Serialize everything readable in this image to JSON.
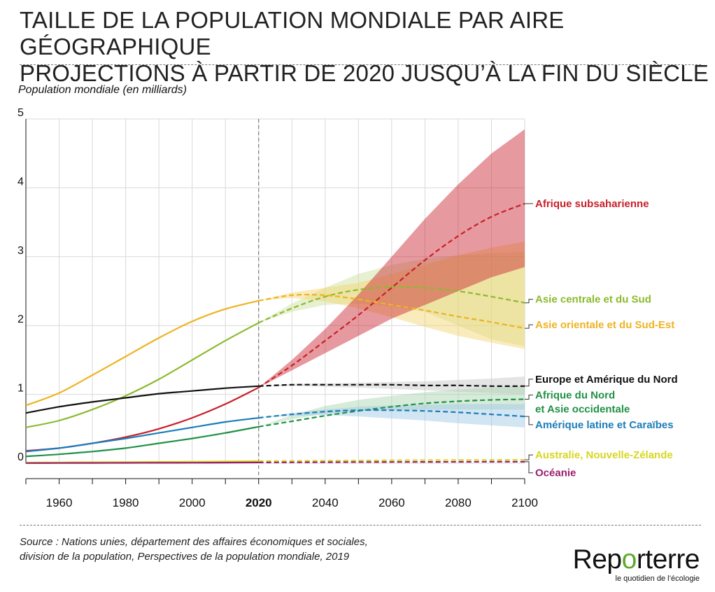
{
  "header": {
    "title_line1": "TAILLE DE LA POPULATION MONDIALE PAR AIRE GÉOGRAPHIQUE",
    "title_line2": "PROJECTIONS À PARTIR DE 2020 JUSQU’À LA FIN DU SIÈCLE"
  },
  "footer": {
    "source_line1": "Source : Nations unies, département des affaires économiques et sociales,",
    "source_line2": "division de la population, Perspectives de la population mondiale, 2019",
    "logo_prefix": "Rep",
    "logo_highlight": "o",
    "logo_suffix": "rterre",
    "logo_tagline": "le quotidien de l’écologie"
  },
  "chart_data": {
    "type": "line",
    "title": "",
    "ylabel": "Population mondiale (en milliards)",
    "xlabel": "",
    "xlim": [
      1950,
      2100
    ],
    "ylim": [
      0,
      5
    ],
    "x_ticks": [
      1960,
      1980,
      2000,
      2020,
      2040,
      2060,
      2080,
      2100
    ],
    "x_tick_emphasis": 2020,
    "y_ticks": [
      0,
      1,
      2,
      3,
      4,
      5
    ],
    "grid": true,
    "projection_start": 2020,
    "legend_placement": "right, inline labels",
    "series": [
      {
        "name": "Afrique subsaharienne",
        "color": "#c8202a",
        "x": [
          1950,
          1960,
          1970,
          1980,
          1990,
          2000,
          2010,
          2020,
          2030,
          2040,
          2050,
          2060,
          2070,
          2080,
          2090,
          2100
        ],
        "y": [
          0.18,
          0.22,
          0.29,
          0.38,
          0.5,
          0.66,
          0.86,
          1.1,
          1.42,
          1.78,
          2.15,
          2.55,
          2.95,
          3.3,
          3.58,
          3.77
        ],
        "band_low": [
          1.1,
          1.35,
          1.6,
          1.85,
          2.1,
          2.3,
          2.5,
          2.7,
          2.85
        ],
        "band_high": [
          1.1,
          1.5,
          1.95,
          2.45,
          3.0,
          3.55,
          4.05,
          4.5,
          4.85
        ]
      },
      {
        "name": "Asie centrale et du Sud",
        "color": "#8cba2e",
        "band_color": "#c9df9a",
        "x": [
          1950,
          1960,
          1970,
          1980,
          1990,
          2000,
          2010,
          2020,
          2030,
          2040,
          2050,
          2060,
          2070,
          2080,
          2090,
          2100
        ],
        "y": [
          0.52,
          0.62,
          0.78,
          0.98,
          1.22,
          1.5,
          1.78,
          2.04,
          2.25,
          2.42,
          2.52,
          2.56,
          2.55,
          2.5,
          2.42,
          2.33
        ],
        "band_low": [
          2.04,
          2.2,
          2.3,
          2.32,
          2.28,
          2.2,
          2.0,
          1.8,
          1.7
        ],
        "band_high": [
          2.04,
          2.32,
          2.55,
          2.75,
          2.88,
          2.97,
          3.02,
          3.05,
          3.07
        ]
      },
      {
        "name": "Asie orientale et du Sud-Est",
        "color": "#eeb322",
        "band_color": "#f3d26a",
        "x": [
          1950,
          1960,
          1970,
          1980,
          1990,
          2000,
          2010,
          2020,
          2030,
          2040,
          2050,
          2060,
          2070,
          2080,
          2090,
          2100
        ],
        "y": [
          0.84,
          1.02,
          1.28,
          1.55,
          1.82,
          2.06,
          2.24,
          2.36,
          2.44,
          2.44,
          2.38,
          2.3,
          2.22,
          2.13,
          2.05,
          1.96
        ],
        "band_low": [
          2.36,
          2.4,
          2.35,
          2.25,
          2.12,
          1.98,
          1.85,
          1.75,
          1.66
        ],
        "band_high": [
          2.36,
          2.48,
          2.55,
          2.62,
          2.75,
          2.88,
          3.02,
          3.13,
          3.22
        ]
      },
      {
        "name": "Europe et Amérique du Nord",
        "color": "#111111",
        "band_color": "#c4c4c4",
        "x": [
          1950,
          1960,
          1970,
          1980,
          1990,
          2000,
          2010,
          2020,
          2030,
          2040,
          2050,
          2060,
          2070,
          2080,
          2090,
          2100
        ],
        "y": [
          0.73,
          0.82,
          0.89,
          0.95,
          1.01,
          1.05,
          1.09,
          1.12,
          1.14,
          1.14,
          1.14,
          1.14,
          1.13,
          1.13,
          1.12,
          1.12
        ],
        "band_low": [
          1.12,
          1.12,
          1.11,
          1.1,
          1.08,
          1.06,
          1.04,
          1.02,
          1.0
        ],
        "band_high": [
          1.12,
          1.15,
          1.16,
          1.17,
          1.18,
          1.19,
          1.21,
          1.23,
          1.26
        ]
      },
      {
        "name": "Afrique du Nord et Asie occidentale",
        "label_lines": [
          "Afrique du Nord",
          "et Asie occidentale"
        ],
        "color": "#219147",
        "band_color": "#a6d3ac",
        "x": [
          1950,
          1960,
          1970,
          1980,
          1990,
          2000,
          2010,
          2020,
          2030,
          2040,
          2050,
          2060,
          2070,
          2080,
          2090,
          2100
        ],
        "y": [
          0.1,
          0.13,
          0.17,
          0.22,
          0.29,
          0.36,
          0.44,
          0.53,
          0.61,
          0.69,
          0.76,
          0.82,
          0.87,
          0.9,
          0.92,
          0.93
        ],
        "band_low": [
          0.53,
          0.64,
          0.72,
          0.76,
          0.77,
          0.78,
          0.78,
          0.78,
          0.78
        ],
        "band_high": [
          0.53,
          0.7,
          0.83,
          0.92,
          0.98,
          1.03,
          1.07,
          1.1,
          1.12
        ]
      },
      {
        "name": "Amérique latine et Caraïbes",
        "color": "#1b7dba",
        "band_color": "#9cc5e4",
        "x": [
          1950,
          1960,
          1970,
          1980,
          1990,
          2000,
          2010,
          2020,
          2030,
          2040,
          2050,
          2060,
          2070,
          2080,
          2090,
          2100
        ],
        "y": [
          0.17,
          0.22,
          0.29,
          0.36,
          0.44,
          0.52,
          0.6,
          0.66,
          0.71,
          0.75,
          0.77,
          0.77,
          0.76,
          0.74,
          0.71,
          0.68
        ],
        "band_low": [
          0.66,
          0.69,
          0.7,
          0.68,
          0.65,
          0.62,
          0.58,
          0.55,
          0.52
        ],
        "band_high": [
          0.66,
          0.73,
          0.78,
          0.82,
          0.84,
          0.85,
          0.86,
          0.86,
          0.86
        ]
      },
      {
        "name": "Australie, Nouvelle-Zélande",
        "color": "#d8d620",
        "x": [
          1950,
          1960,
          1970,
          1980,
          1990,
          2000,
          2010,
          2020,
          2030,
          2040,
          2050,
          2060,
          2070,
          2080,
          2090,
          2100
        ],
        "y": [
          0.01,
          0.012,
          0.015,
          0.017,
          0.02,
          0.023,
          0.026,
          0.03,
          0.034,
          0.037,
          0.04,
          0.043,
          0.045,
          0.047,
          0.048,
          0.049
        ]
      },
      {
        "name": "Océanie",
        "color": "#9a1f6a",
        "x": [
          1950,
          1960,
          1970,
          1980,
          1990,
          2000,
          2010,
          2020,
          2030,
          2040,
          2050,
          2060,
          2070,
          2080,
          2090,
          2100
        ],
        "y": [
          0.002,
          0.003,
          0.004,
          0.005,
          0.006,
          0.007,
          0.009,
          0.011,
          0.013,
          0.015,
          0.017,
          0.018,
          0.019,
          0.02,
          0.021,
          0.021
        ]
      }
    ]
  }
}
